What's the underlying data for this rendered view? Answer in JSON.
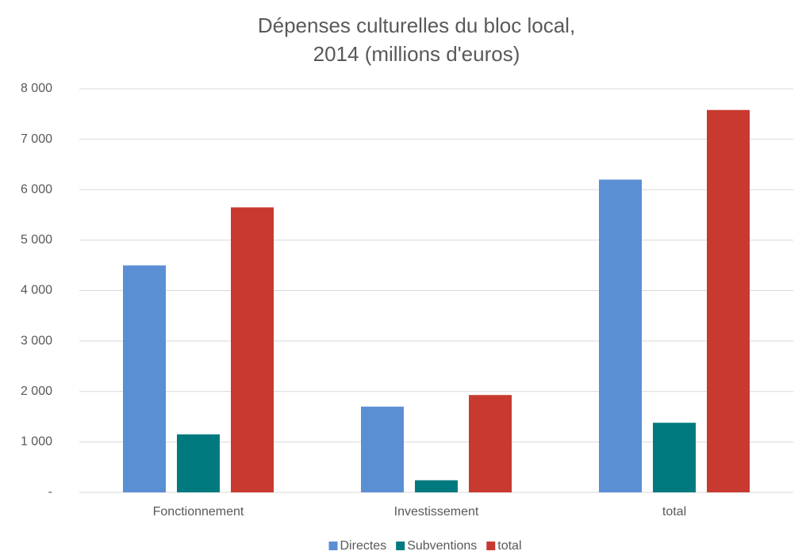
{
  "chart_data": {
    "type": "bar",
    "title": [
      "Dépenses culturelles du bloc local,",
      "2014 (millions d'euros)"
    ],
    "categories": [
      "Fonctionnement",
      "Investissement",
      "total"
    ],
    "series": [
      {
        "name": "Directes",
        "color": "#5b8fd4",
        "values": [
          4500,
          1700,
          6200
        ]
      },
      {
        "name": "Subventions",
        "color": "#007a7e",
        "values": [
          1150,
          240,
          1380
        ]
      },
      {
        "name": "total",
        "color": "#c83a30",
        "values": [
          5650,
          1930,
          7580
        ]
      }
    ],
    "ylim": [
      0,
      8000
    ],
    "yticks": [
      {
        "value": 0,
        "label": "-"
      },
      {
        "value": 1000,
        "label": "1 000"
      },
      {
        "value": 2000,
        "label": "2 000"
      },
      {
        "value": 3000,
        "label": "3 000"
      },
      {
        "value": 4000,
        "label": "4 000"
      },
      {
        "value": 5000,
        "label": "5 000"
      },
      {
        "value": 6000,
        "label": "6 000"
      },
      {
        "value": 7000,
        "label": "7 000"
      },
      {
        "value": 8000,
        "label": "8 000"
      }
    ],
    "grid": true,
    "legend": "bottom"
  }
}
